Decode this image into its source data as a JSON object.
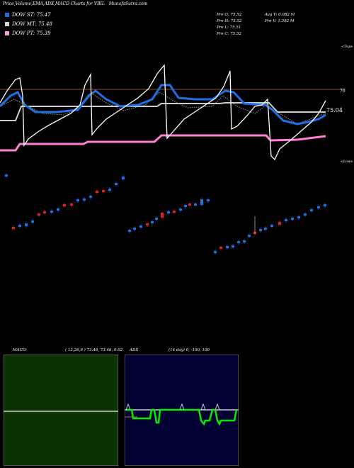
{
  "header": {
    "title": "Price,Volume,EMA,ADX,MACD Charts for VBIL",
    "site": "MunafaSutra.com"
  },
  "legend": [
    {
      "label": "DOW ST: 75.47",
      "color": "#1f6fe6"
    },
    {
      "label": "DOW MT: 75.48",
      "color": "#d8d8d8"
    },
    {
      "label": "DOW PT: 75.39",
      "color": "#ff9fdc"
    }
  ],
  "stats": {
    "open": "Pre   O: 75.52",
    "high": "Pre   H: 75.52",
    "low": "Pre   L: 75.51",
    "close": "Pre   C: 75.52",
    "avg_volume": "Avg V: 0.082  M",
    "pre_volume": "Pre   V: 1.392  M"
  },
  "axis_labels": {
    "tops": "<Tops",
    "lows": "<Lows",
    "resistance": "76",
    "last_price": "75.04"
  },
  "macd_panel": {
    "title": "MACD:",
    "params": "( 12,26,9 ) 73.48, 73.46, 0.02"
  },
  "adx_panel": {
    "title": "ADX",
    "params": "(14  day) 0, -100, 100"
  },
  "colors": {
    "background": "#000000",
    "ema_short": "#1f6fe6",
    "ema_mid": "#cccccc",
    "ema_long": "#ff7fd0",
    "price_line": "#ffffff",
    "resistance": "#8b4a2b",
    "candle_up": "#1f6fe6",
    "candle_down": "#e02020",
    "macd_bg": "#0b3300",
    "adx_bg": "#000033",
    "adx_line": "#00ee00"
  },
  "chart_data": {
    "type": "line",
    "series": [
      {
        "name": "DOW ST",
        "last": 75.47
      },
      {
        "name": "DOW MT",
        "last": 75.48
      },
      {
        "name": "DOW PT",
        "last": 75.39
      }
    ],
    "annotations": [
      "76",
      "75.04"
    ],
    "candles": {
      "up_count": 48,
      "down_count": 14
    }
  }
}
